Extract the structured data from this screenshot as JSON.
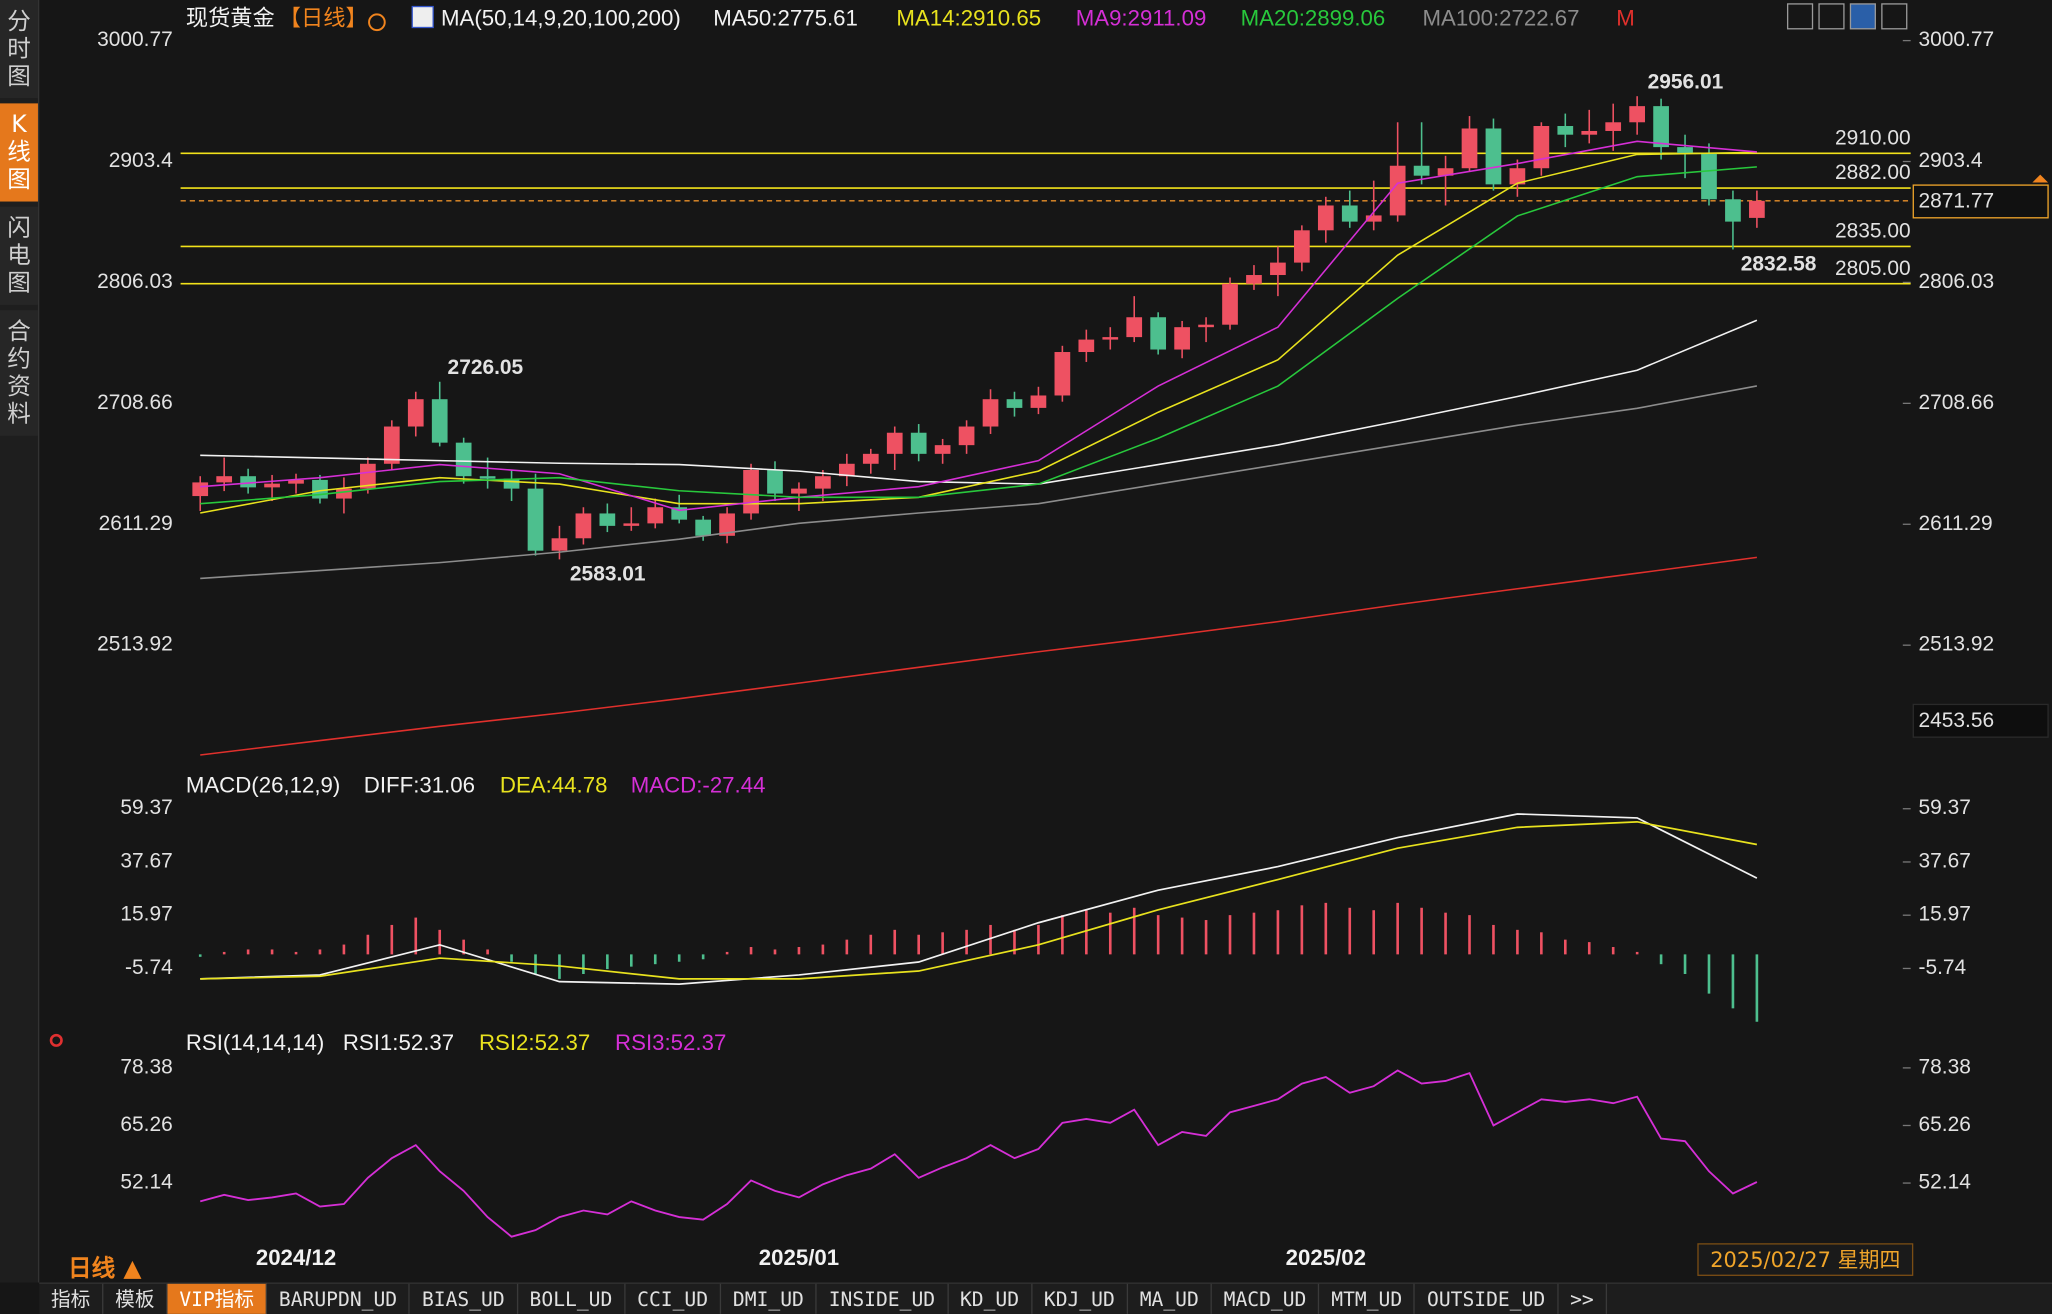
{
  "sidebar": [
    "分时图",
    "K线图",
    "闪电图",
    "合约资料"
  ],
  "period": "日线 ▲",
  "date": "2025/02/27 星期四",
  "tabs": [
    "指标",
    "模板",
    "VIP指标",
    "BARUPDN_UD",
    "BIAS_UD",
    "BOLL_UD",
    "CCI_UD",
    "DMI_UD",
    "INSIDE_UD",
    "KD_UD",
    "KDJ_UD",
    "MA_UD",
    "MACD_UD",
    "MTM_UD",
    "OUTSIDE_UD",
    ">>"
  ],
  "chart_data": [
    {
      "type": "candlestick",
      "title": "现货黄金",
      "period": "【日线】",
      "indicator": "MA(50,14,9,20,100,200)",
      "categories": [
        null,
        null,
        null,
        null,
        "2024/12",
        null,
        null,
        null,
        null,
        null,
        null,
        null,
        null,
        null,
        null,
        null,
        null,
        null,
        null,
        null,
        null,
        null,
        null,
        null,
        null,
        "2025/01",
        null,
        null,
        null,
        null,
        null,
        null,
        null,
        null,
        null,
        null,
        null,
        null,
        null,
        null,
        null,
        null,
        null,
        null,
        null,
        null,
        null,
        "2025/02",
        null,
        null,
        null,
        null,
        null,
        null,
        null,
        null,
        null,
        null,
        null,
        null,
        null,
        null,
        null,
        null,
        null,
        null
      ],
      "open": [
        2634,
        2645,
        2650,
        2641,
        2644,
        2647,
        2632,
        2640,
        2660,
        2690,
        2712,
        2677,
        2650,
        2648,
        2640,
        2590,
        2600,
        2620,
        2610,
        2612,
        2625,
        2615,
        2602,
        2620,
        2655,
        2636,
        2640,
        2650,
        2660,
        2668,
        2685,
        2668,
        2675,
        2690,
        2712,
        2705,
        2715,
        2750,
        2760,
        2762,
        2778,
        2752,
        2770,
        2772,
        2805,
        2812,
        2822,
        2848,
        2868,
        2855,
        2860,
        2900,
        2892,
        2898,
        2930,
        2885,
        2898,
        2932,
        2925,
        2928,
        2935,
        2948,
        2915,
        2910,
        2873,
        2858
      ],
      "high": [
        2650,
        2665,
        2656,
        2651,
        2652,
        2651,
        2649,
        2665,
        2695,
        2718,
        2726.05,
        2681,
        2665,
        2655,
        2652,
        2610,
        2625,
        2628,
        2625,
        2632,
        2635,
        2618,
        2625,
        2660,
        2662,
        2645,
        2655,
        2668,
        2672,
        2690,
        2692,
        2680,
        2695,
        2720,
        2718,
        2722,
        2755,
        2768,
        2770,
        2795,
        2782,
        2775,
        2778,
        2810,
        2820,
        2835,
        2852,
        2875,
        2880,
        2888,
        2935,
        2935,
        2908,
        2940,
        2938,
        2905,
        2935,
        2942,
        2945,
        2950,
        2956.01,
        2954,
        2925,
        2918,
        2880,
        2880
      ],
      "low": [
        2622,
        2638,
        2636,
        2630,
        2636,
        2628,
        2620,
        2636,
        2655,
        2682,
        2674,
        2644,
        2640,
        2630,
        2586,
        2583.01,
        2595,
        2605,
        2606,
        2608,
        2612,
        2598,
        2596,
        2615,
        2630,
        2622,
        2630,
        2642,
        2652,
        2655,
        2662,
        2660,
        2668,
        2684,
        2698,
        2700,
        2710,
        2742,
        2752,
        2758,
        2748,
        2745,
        2758,
        2768,
        2800,
        2795,
        2815,
        2838,
        2850,
        2848,
        2855,
        2885,
        2868,
        2895,
        2880,
        2875,
        2892,
        2915,
        2918,
        2912,
        2925,
        2905,
        2890,
        2868,
        2832.58,
        2850
      ],
      "close": [
        2645,
        2650,
        2641,
        2644,
        2647,
        2632,
        2640,
        2660,
        2690,
        2712,
        2677,
        2650,
        2648,
        2640,
        2590,
        2600,
        2620,
        2610,
        2612,
        2625,
        2615,
        2602,
        2620,
        2655,
        2636,
        2640,
        2650,
        2660,
        2668,
        2685,
        2668,
        2675,
        2690,
        2712,
        2705,
        2715,
        2750,
        2760,
        2762,
        2778,
        2752,
        2770,
        2772,
        2805,
        2812,
        2822,
        2848,
        2868,
        2855,
        2860,
        2900,
        2892,
        2898,
        2930,
        2885,
        2898,
        2932,
        2925,
        2928,
        2935,
        2948,
        2915,
        2910,
        2873,
        2855,
        2871.77
      ],
      "up_color": "#ee5162",
      "down_color": "#4dbf8e",
      "ylim": [
        2411.7,
        3028.2
      ],
      "yticks": [
        3000.77,
        2903.4,
        2806.03,
        2708.66,
        2611.29,
        2513.92
      ],
      "levels": [
        {
          "value": 2910,
          "label": "2910.00"
        },
        {
          "value": 2882,
          "label": "2882.00"
        },
        {
          "value": 2835,
          "label": "2835.00"
        },
        {
          "value": 2805,
          "label": "2805.00"
        }
      ],
      "level_color": "#f2e21a",
      "last_price": 2871.77,
      "marker_price": 2453.56,
      "series": [
        {
          "name": "MA50:2775.61",
          "color": "#f2f2f2",
          "x": [
            0,
            5,
            10,
            15,
            20,
            25,
            30,
            35,
            40,
            45,
            50,
            55,
            60,
            65
          ],
          "values": [
            2666.8,
            2664.7,
            2662.5,
            2660.4,
            2659.4,
            2654.1,
            2645.7,
            2643.6,
            2659.4,
            2675.2,
            2694.2,
            2714.2,
            2735.3,
            2775.61
          ]
        },
        {
          "name": "MA14:2910.65",
          "color": "#e8e21e",
          "x": [
            0,
            5,
            10,
            15,
            20,
            25,
            30,
            35,
            40,
            45,
            50,
            55,
            60,
            65
          ],
          "values": [
            2620.4,
            2638.3,
            2648.8,
            2643.6,
            2627.8,
            2627.8,
            2633.0,
            2654.1,
            2701.5,
            2743.7,
            2828.0,
            2885.9,
            2909.1,
            2910.65
          ]
        },
        {
          "name": "MA9:2911.09",
          "color": "#d52fd6",
          "x": [
            0,
            5,
            10,
            15,
            20,
            25,
            30,
            35,
            40,
            45,
            50,
            55,
            60,
            65
          ],
          "values": [
            2641.5,
            2648.8,
            2659.4,
            2652.0,
            2622.5,
            2633.0,
            2641.5,
            2662.5,
            2722.6,
            2770.0,
            2885.9,
            2901.7,
            2919.7,
            2911.09
          ]
        },
        {
          "name": "MA20:2899.06",
          "color": "#28c83c",
          "x": [
            0,
            5,
            10,
            15,
            20,
            25,
            30,
            35,
            40,
            45,
            50,
            55,
            60,
            65
          ],
          "values": [
            2627.8,
            2635.2,
            2645.7,
            2648.8,
            2638.3,
            2633.0,
            2633.0,
            2643.6,
            2680.5,
            2722.6,
            2793.2,
            2859.6,
            2891.2,
            2899.06
          ]
        },
        {
          "name": "MA100:2722.67",
          "color": "#8c8c8c",
          "x": [
            0,
            5,
            10,
            15,
            20,
            25,
            30,
            35,
            40,
            45,
            50,
            55,
            60,
            65
          ],
          "values": [
            2567.7,
            2574.0,
            2580.4,
            2588.8,
            2599.3,
            2612.0,
            2620.4,
            2627.8,
            2643.6,
            2659.4,
            2675.2,
            2691.0,
            2704.7,
            2722.67
          ]
        },
        {
          "name": "M",
          "color": "#e0302c",
          "x": [
            0,
            5,
            10,
            15,
            20,
            25,
            30,
            35,
            40,
            45,
            50,
            55,
            60,
            65
          ],
          "values": [
            2425.5,
            2437.1,
            2448.6,
            2459.2,
            2470.8,
            2483.4,
            2496.1,
            2508.7,
            2520.3,
            2532.9,
            2546.6,
            2559.3,
            2571.9,
            2584.6
          ]
        }
      ]
    },
    {
      "type": "macd",
      "title": "MACD(26,12,9)",
      "ylim": [
        -29.73,
        73.23
      ],
      "yticks": [
        59.37,
        37.67,
        15.97,
        -5.74
      ],
      "up_color": "#ee5162",
      "down_color": "#4dbf8e",
      "series": [
        {
          "name": "DIFF:31.06",
          "color": "#f2f2f2",
          "x": [
            0,
            5,
            10,
            15,
            20,
            25,
            30,
            35,
            40,
            45,
            50,
            55,
            60,
            65
          ],
          "values": [
            -10.0,
            -8.4,
            3.9,
            -11.1,
            -12.1,
            -8.4,
            -3.1,
            12.9,
            26.2,
            35.8,
            47.6,
            57.2,
            55.6,
            31.06
          ]
        },
        {
          "name": "DEA:44.78",
          "color": "#e8e21e",
          "x": [
            0,
            5,
            10,
            15,
            20,
            25,
            30,
            35,
            40,
            45,
            50,
            55,
            60,
            65
          ],
          "values": [
            -10.0,
            -8.9,
            -1.5,
            -4.7,
            -10.0,
            -10.0,
            -6.8,
            3.9,
            18.2,
            30.5,
            43.3,
            51.8,
            54.0,
            44.78
          ]
        }
      ],
      "histogram": {
        "name": "MACD:-27.44",
        "color": "#d52fd6",
        "values": [
          -1,
          1,
          2,
          2,
          1,
          2,
          4,
          8,
          12,
          15,
          10,
          6,
          2,
          -3,
          -8,
          -10,
          -8,
          -6,
          -5,
          -4,
          -3,
          -2,
          1,
          3,
          2,
          3,
          4,
          6,
          8,
          10,
          8,
          9,
          10,
          12,
          10,
          12,
          16,
          18,
          17,
          19,
          16,
          15,
          14,
          16,
          17,
          18,
          20,
          21,
          19,
          18,
          21,
          19,
          17,
          16,
          12,
          10,
          9,
          6,
          5,
          3,
          1,
          -4,
          -8,
          -16,
          -22,
          -27.44
        ]
      }
    },
    {
      "type": "rsi",
      "title": "RSI(14,14,14)",
      "ylim": [
        38.43,
        80.77
      ],
      "yticks": [
        78.38,
        65.26,
        52.14
      ],
      "legend": [
        {
          "name": "RSI1:52.37",
          "color": "#f2f2f2"
        },
        {
          "name": "RSI2:52.37",
          "color": "#e8e21e"
        },
        {
          "name": "RSI3:52.37",
          "color": "#d52fd6"
        }
      ],
      "color": "#d52fd6",
      "values": [
        47.97,
        49.46,
        48.27,
        48.86,
        49.76,
        46.78,
        47.37,
        53.34,
        57.81,
        60.79,
        54.83,
        50.35,
        44.39,
        39.92,
        41.41,
        44.39,
        45.88,
        44.99,
        47.97,
        45.88,
        44.39,
        43.79,
        47.37,
        52.74,
        50.35,
        48.86,
        51.84,
        53.93,
        55.42,
        58.7,
        53.34,
        55.72,
        57.81,
        60.79,
        57.81,
        59.89,
        65.86,
        66.75,
        65.86,
        68.84,
        60.79,
        63.77,
        62.88,
        68.24,
        69.73,
        71.22,
        74.8,
        76.29,
        72.72,
        74.21,
        77.78,
        74.8,
        75.4,
        77.19,
        65.26,
        68.24,
        71.22,
        70.63,
        71.22,
        70.33,
        71.82,
        62.28,
        61.68,
        54.83,
        49.76,
        52.37
      ]
    }
  ]
}
